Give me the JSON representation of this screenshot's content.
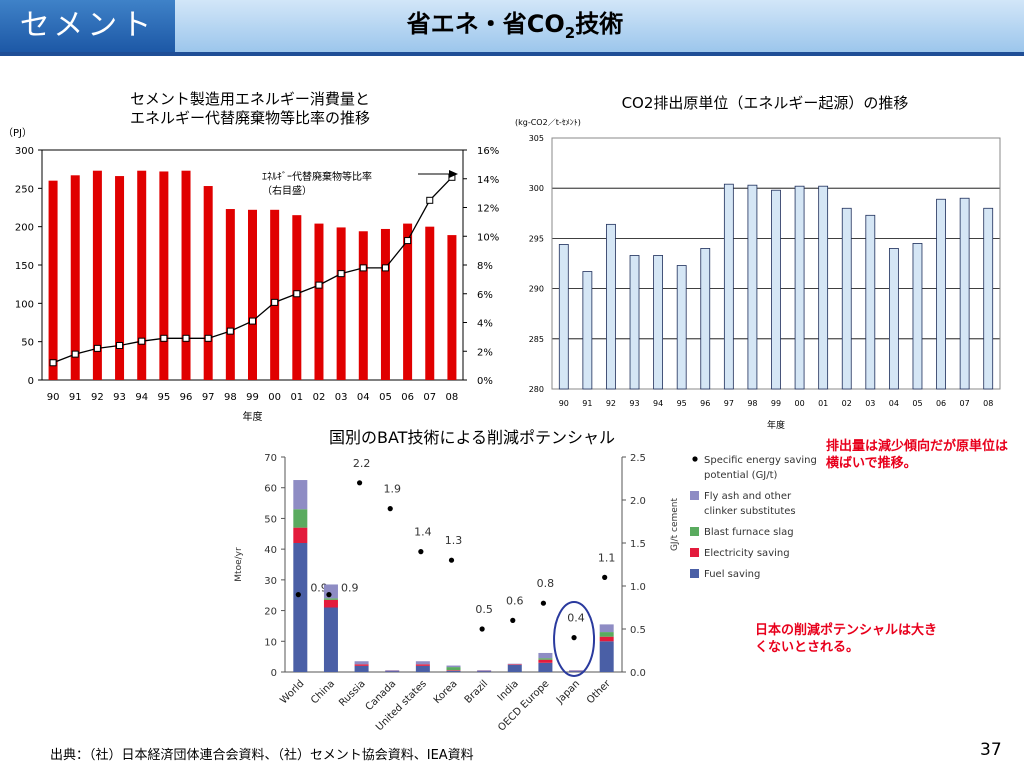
{
  "header": {
    "tag": "セメント",
    "title_main": "省エネ・省CO",
    "title_sub": "2",
    "title_tail": "技術"
  },
  "footer": {
    "source": "出典：（社）日本経済団体連合会資料、（社）セメント協会資料、IEA資料",
    "page": "37"
  },
  "notes": {
    "right": "排出量は減少傾向だが原単位は横ばいで推移。",
    "bottom": "日本の削減ポテンシャルは大きくないとされる。"
  },
  "colors": {
    "red": "#e00000",
    "lightblue": "#d5e6f5",
    "fuel": "#4a5fa6",
    "elec": "#e31b3c",
    "slag": "#5aab5f",
    "fly": "#8e8cc4",
    "accent": "#1f4e96"
  },
  "chart_data": [
    {
      "type": "bar",
      "title": "セメント製造用エネルギー消費量とエネルギー代替廃棄物等比率の推移",
      "title_lines": [
        "セメント製造用エネルギー消費量と",
        "エネルギー代替廃棄物等比率の推移"
      ],
      "ylabel": "（PJ）",
      "xlabel": "年度",
      "categories": [
        "90",
        "91",
        "92",
        "93",
        "94",
        "95",
        "96",
        "97",
        "98",
        "99",
        "00",
        "01",
        "02",
        "03",
        "04",
        "05",
        "06",
        "07",
        "08"
      ],
      "ylim": [
        0,
        300
      ],
      "yticks": [
        "0",
        "50",
        "100",
        "150",
        "200",
        "250",
        "300"
      ],
      "y2lim": [
        0,
        16
      ],
      "y2ticks": [
        "0%",
        "2%",
        "4%",
        "6%",
        "8%",
        "10%",
        "12%",
        "14%",
        "16%"
      ],
      "series": [
        {
          "type": "bar",
          "values": [
            260,
            267,
            273,
            266,
            273,
            272,
            273,
            253,
            223,
            222,
            222,
            215,
            204,
            199,
            194,
            197,
            204,
            200,
            189
          ]
        },
        {
          "type": "line",
          "axis": "right",
          "values": [
            1.2,
            1.8,
            2.2,
            2.4,
            2.7,
            2.9,
            2.9,
            2.9,
            3.4,
            4.1,
            5.4,
            6.0,
            6.6,
            7.4,
            7.8,
            7.8,
            9.7,
            12.5,
            14.1
          ]
        }
      ],
      "annotation": [
        "ｴﾈﾙｷﾞｰ代替廃棄物等比率",
        "（右目盛）"
      ],
      "grid": false
    },
    {
      "type": "bar",
      "title": "CO2排出原単位（エネルギー起源）の推移",
      "ylabel": "(kg-CO2／t-ｾﾒﾝﾄ)",
      "xlabel": "年度",
      "categories": [
        "90",
        "91",
        "92",
        "93",
        "94",
        "95",
        "96",
        "97",
        "98",
        "99",
        "00",
        "01",
        "02",
        "03",
        "04",
        "05",
        "06",
        "07",
        "08"
      ],
      "ylim": [
        280,
        305
      ],
      "yticks": [
        "280",
        "285",
        "290",
        "295",
        "300",
        "305"
      ],
      "values": [
        294.4,
        291.7,
        296.4,
        293.3,
        293.3,
        292.3,
        294.0,
        300.4,
        300.3,
        299.8,
        300.2,
        300.2,
        298.0,
        297.3,
        294.0,
        294.5,
        298.9,
        299.0,
        298.0
      ],
      "grid": true
    },
    {
      "type": "bar",
      "title": "国別のBAT技術による削減ポテンシャル",
      "ylabel": "Mtoe/yr",
      "y2label": "GJ/t cement",
      "categories": [
        "World",
        "China",
        "Russia",
        "Canada",
        "United states",
        "Korea",
        "Brazil",
        "India",
        "OECD Europe",
        "Japan",
        "Other"
      ],
      "ylim": [
        0,
        70
      ],
      "yticks": [
        "0",
        "10",
        "20",
        "30",
        "40",
        "50",
        "60",
        "70"
      ],
      "y2lim": [
        0,
        2.5
      ],
      "y2ticks": [
        "0.0",
        "0.5",
        "1.0",
        "1.5",
        "2.0",
        "2.5"
      ],
      "series": [
        {
          "name": "Fuel saving",
          "values": [
            42,
            21,
            2,
            0.3,
            2,
            0.4,
            0.3,
            2.3,
            3,
            0.3,
            10
          ]
        },
        {
          "name": "Electricity saving",
          "values": [
            5,
            2.5,
            0.5,
            0.1,
            0.5,
            0.2,
            0.1,
            0.2,
            1,
            0.1,
            1.5
          ]
        },
        {
          "name": "Blast furnace slag",
          "values": [
            6,
            0.5,
            0,
            0,
            0,
            1,
            0,
            0,
            0.5,
            0,
            1.5
          ]
        },
        {
          "name": "Fly ash and other clinker substitutes",
          "values": [
            9.5,
            4.5,
            1,
            0.2,
            1,
            0.5,
            0.2,
            0.2,
            1.7,
            0.2,
            2.5
          ]
        }
      ],
      "points": {
        "name": "Specific energy saving potential (GJ/t)",
        "values": [
          0.9,
          0.9,
          2.2,
          1.9,
          1.4,
          1.3,
          0.5,
          0.6,
          0.8,
          0.4,
          1.1
        ],
        "labels": [
          "0.9",
          "0.9",
          "2.2",
          "1.9",
          "1.4",
          "1.3",
          "0.5",
          "0.6",
          "0.8",
          "0.4",
          "1.1"
        ]
      },
      "legend": [
        "Specific energy saving potential (GJ/t)",
        "Fly ash and other clinker substitutes",
        "Blast furnace slag",
        "Electricity saving",
        "Fuel saving"
      ],
      "legend_lines": [
        [
          "Specific energy saving",
          "potential (GJ/t)"
        ],
        [
          "Fly ash and other",
          "clinker substitutes"
        ],
        [
          "Blast furnace slag"
        ],
        [
          "Electricity saving"
        ],
        [
          "Fuel saving"
        ]
      ],
      "legend_position": "right",
      "highlight": "Japan"
    }
  ]
}
